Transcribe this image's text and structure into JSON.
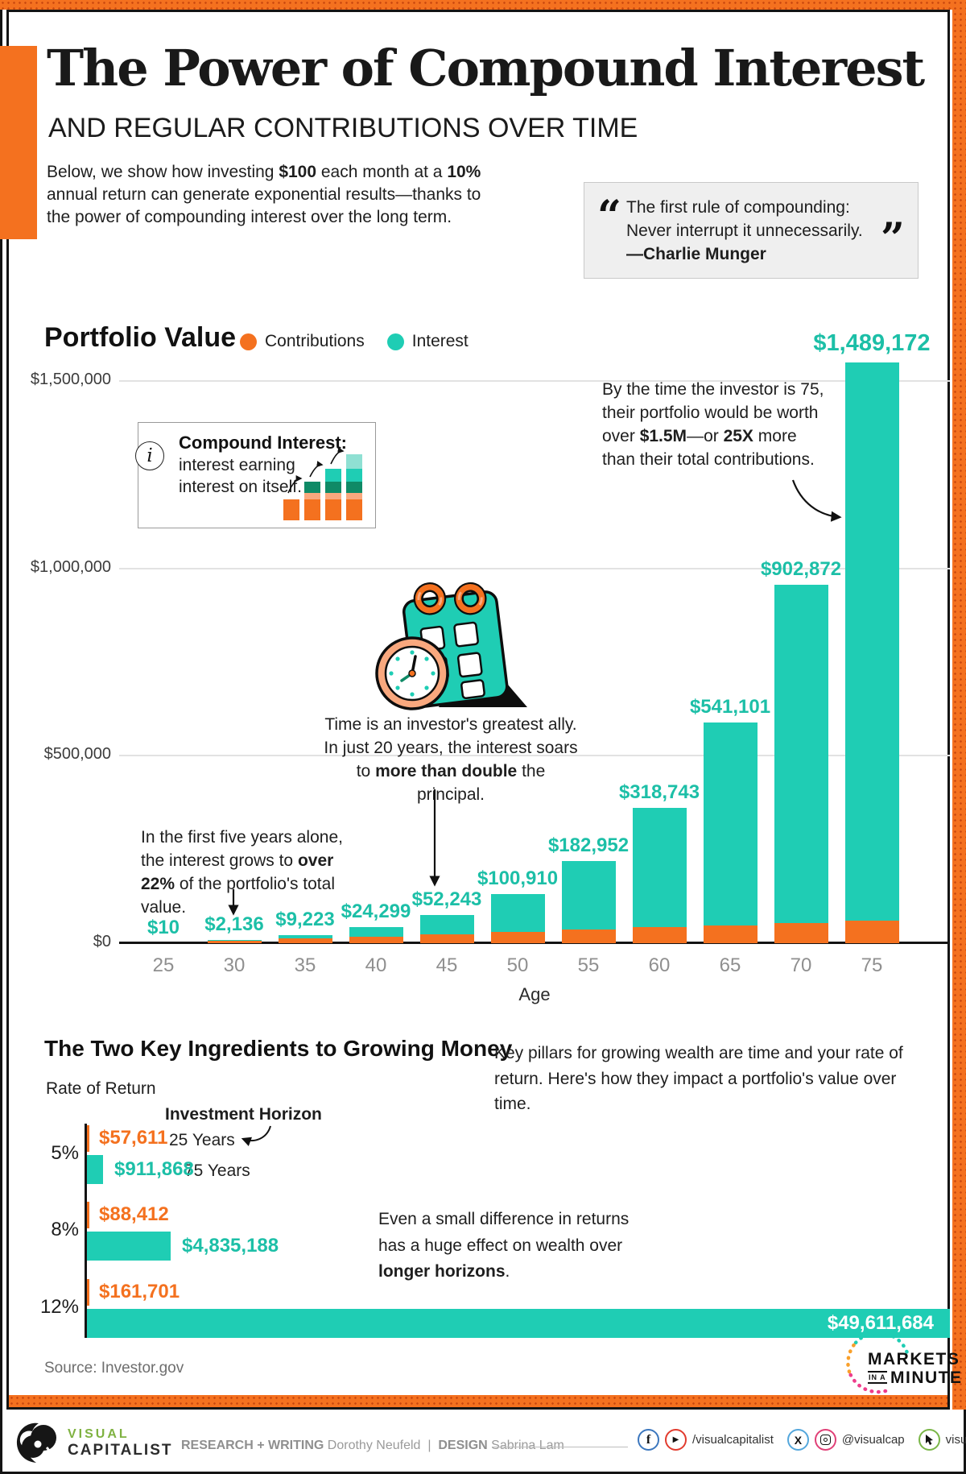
{
  "header": {
    "title": "The Power of Compound Interest",
    "subtitle": "AND REGULAR CONTRIBUTIONS OVER TIME",
    "intro": {
      "pre": "Below, we show how investing ",
      "bold1": "$100",
      "mid": " each month at a ",
      "bold2": "10%",
      "post": " annual return can generate exponential results—thanks to the power of compounding interest over the long term."
    },
    "quote": {
      "open_mark": "“",
      "line1": "The first rule of compounding:",
      "line2": "Never interrupt it unnecessarily.",
      "close_mark": "”",
      "attribution": "—Charlie Munger"
    }
  },
  "portfolio_chart": {
    "title": "Portfolio Value",
    "legend": [
      {
        "label": "Contributions",
        "color": "#F4711F"
      },
      {
        "label": "Interest",
        "color": "#1FCDB4"
      }
    ],
    "xlabel": "Age"
  },
  "info_box": {
    "icon_glyph": "i",
    "term": "Compound Interest:",
    "line1": "interest earning",
    "line2": "interest on itself."
  },
  "annotations": {
    "age75": {
      "pre": "By the time the investor is 75, their portfolio would be worth over ",
      "bold1": "$1.5M",
      "mid": "—or ",
      "bold2": "25X",
      "post": " more than their total contributions."
    },
    "time": {
      "pre": "Time is an investor's greatest ally. In just 20 years, the interest soars to ",
      "bold1": "more than double",
      "post": " the principal."
    },
    "five_years": {
      "pre": "In the first five years alone, the interest grows to ",
      "bold1": "over 22%",
      "post": " of the portfolio's total value."
    }
  },
  "ingredients": {
    "heading": "The Two Key Ingredients to Growing Money",
    "desc": "Key pillars for growing wealth are time and your rate of return. Here's how they impact a portfolio's value over time.",
    "axis_label": "Rate of Return",
    "horizon_label": "Investment Horizon",
    "year25": "25 Years",
    "year75": "75 Years",
    "note": {
      "pre": "Even a small difference in returns has a huge effect on wealth over ",
      "bold1": "longer horizons",
      "post": "."
    }
  },
  "chart_data": [
    {
      "type": "bar",
      "stacked": true,
      "title": "Portfolio Value",
      "categories": [
        "25",
        "30",
        "35",
        "40",
        "45",
        "50",
        "55",
        "60",
        "65",
        "70",
        "75"
      ],
      "series": [
        {
          "name": "Contributions",
          "color": "#F4711F",
          "values": [
            100,
            6000,
            12000,
            18000,
            24000,
            30000,
            36000,
            42000,
            48000,
            54000,
            60000
          ]
        },
        {
          "name": "Interest",
          "color": "#1FCDB4",
          "values": [
            10,
            2136,
            9223,
            24299,
            52243,
            100910,
            182952,
            318743,
            541101,
            902872,
            1489172
          ]
        }
      ],
      "bar_labels": [
        "$10",
        "$2,136",
        "$9,223",
        "$24,299",
        "$52,243",
        "$100,910",
        "$182,952",
        "$318,743",
        "$541,101",
        "$902,872",
        "$1,489,172"
      ],
      "xlabel": "Age",
      "ylim": [
        0,
        1500000
      ],
      "y_ticks": [
        {
          "value": 0,
          "label": "$0"
        },
        {
          "value": 500000,
          "label": "$500,000"
        },
        {
          "value": 1000000,
          "label": "$1,000,000"
        },
        {
          "value": 1500000,
          "label": "$1,500,000"
        }
      ],
      "grid": true,
      "legend_position": "top"
    },
    {
      "type": "bar",
      "orientation": "horizontal",
      "title": "The Two Key Ingredients to Growing Money",
      "categories": [
        "5%",
        "8%",
        "12%"
      ],
      "series": [
        {
          "name": "25 Years",
          "color": "#F4711F",
          "values": [
            57611,
            88412,
            161701
          ],
          "labels": [
            "$57,611",
            "$88,412",
            "$161,701"
          ]
        },
        {
          "name": "75 Years",
          "color": "#1FCDB4",
          "values": [
            911868,
            4835188,
            49611684
          ],
          "labels": [
            "$911,868",
            "$4,835,188",
            "$49,611,684"
          ]
        }
      ],
      "xlim": [
        0,
        49611684
      ],
      "ylabel": "Rate of Return"
    }
  ],
  "footer": {
    "source": "Source: Investor.gov",
    "mim_line1": "MARKETS",
    "mim_ina": "IN A",
    "mim_line2": "MINUTE",
    "vc_visual": "VISUAL",
    "vc_capitalist": "CAPITALIST",
    "credits": {
      "rw_label": "RESEARCH + WRITING",
      "rw_name": "Dorothy Neufeld",
      "sep": "|",
      "d_label": "DESIGN",
      "d_name": "Sabrina Lam"
    },
    "social": {
      "handle_fb_yt": "/visualcapitalist",
      "handle_ig": "@visualcap",
      "site": "visualcapitalist.com"
    }
  },
  "colors": {
    "accent_orange": "#F4711F",
    "teal_bar": "#1FCDB4",
    "teal_text": "#1CBFA7",
    "dark_green": "#0F8A66",
    "peach": "#F9A87E",
    "light_teal": "#8FE0D3",
    "pink": "#EE3D8B",
    "mim_orange": "#F9A02B",
    "vc_green": "#7FB241",
    "quote_bg": "#EFEFEF"
  }
}
